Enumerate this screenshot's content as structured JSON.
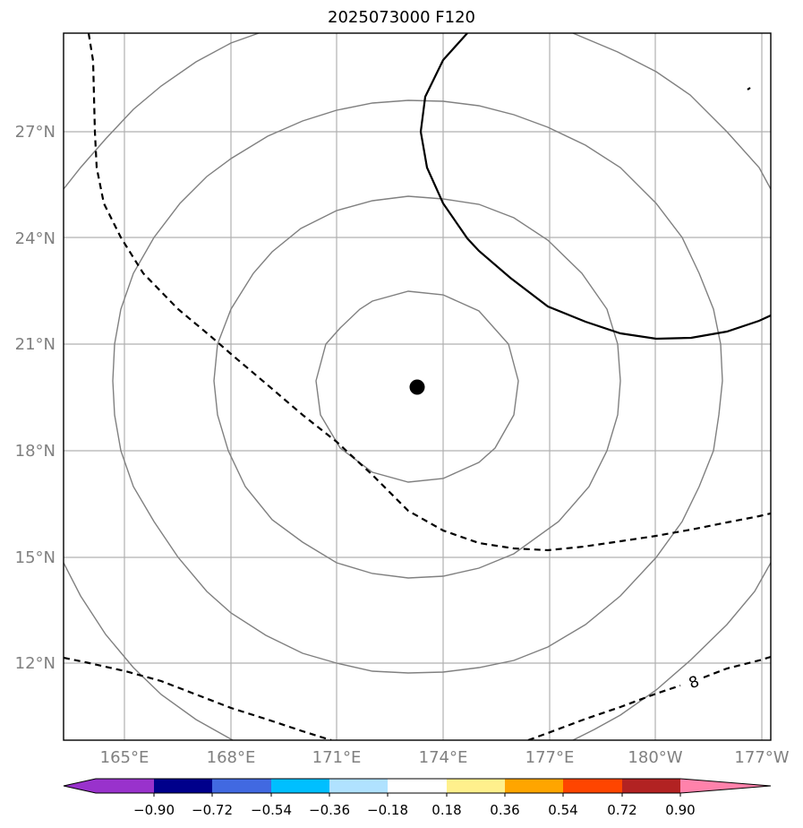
{
  "title": "2025073000 F120",
  "map": {
    "lat_labels": [
      "27°N",
      "24°N",
      "21°N",
      "18°N",
      "15°N",
      "12°N"
    ],
    "lon_labels": [
      "165°E",
      "168°E",
      "171°E",
      "174°E",
      "177°E",
      "180°W",
      "177°W"
    ],
    "center_marker": {
      "lon": 173.3,
      "lat": 19.8
    },
    "contour_label": "8",
    "colors": {
      "gridline": "#b0b0b0",
      "range_rings": "#808080",
      "solid_contour": "#000000",
      "dashed_contour": "#000000",
      "tick_label": "#808080"
    }
  },
  "colorbar": {
    "ticks": [
      "−0.90",
      "−0.72",
      "−0.54",
      "−0.36",
      "−0.18",
      "0.18",
      "0.36",
      "0.54",
      "0.72",
      "0.90"
    ],
    "colors": [
      "#9932cc",
      "#00008b",
      "#4169e1",
      "#00bfff",
      "#b0e2ff",
      "#ffffff",
      "#fff08c",
      "#ffa500",
      "#ff4500",
      "#b22222",
      "#ff82ab"
    ]
  }
}
